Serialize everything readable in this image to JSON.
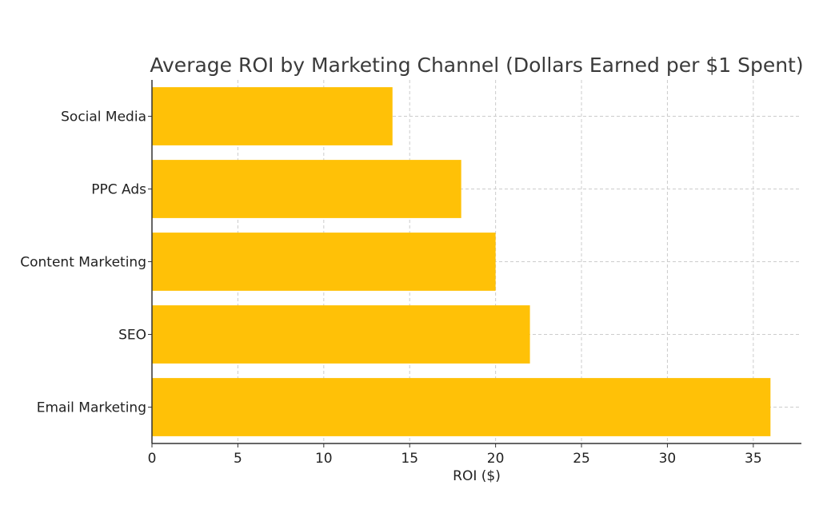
{
  "chart_data": {
    "type": "bar",
    "orientation": "horizontal",
    "title": "Average ROI by Marketing Channel (Dollars Earned per $1 Spent)",
    "xlabel": "ROI ($)",
    "ylabel": "",
    "categories": [
      "Email Marketing",
      "SEO",
      "Content Marketing",
      "PPC Ads",
      "Social Media"
    ],
    "values": [
      36,
      22,
      20,
      18,
      14
    ],
    "xlim": [
      0,
      37.8
    ],
    "xticks": [
      0,
      5,
      10,
      15,
      20,
      25,
      30,
      35
    ],
    "grid": true,
    "bar_color": "#FFC107",
    "grid_color": "#cccccc",
    "axis_color": "#333333"
  }
}
